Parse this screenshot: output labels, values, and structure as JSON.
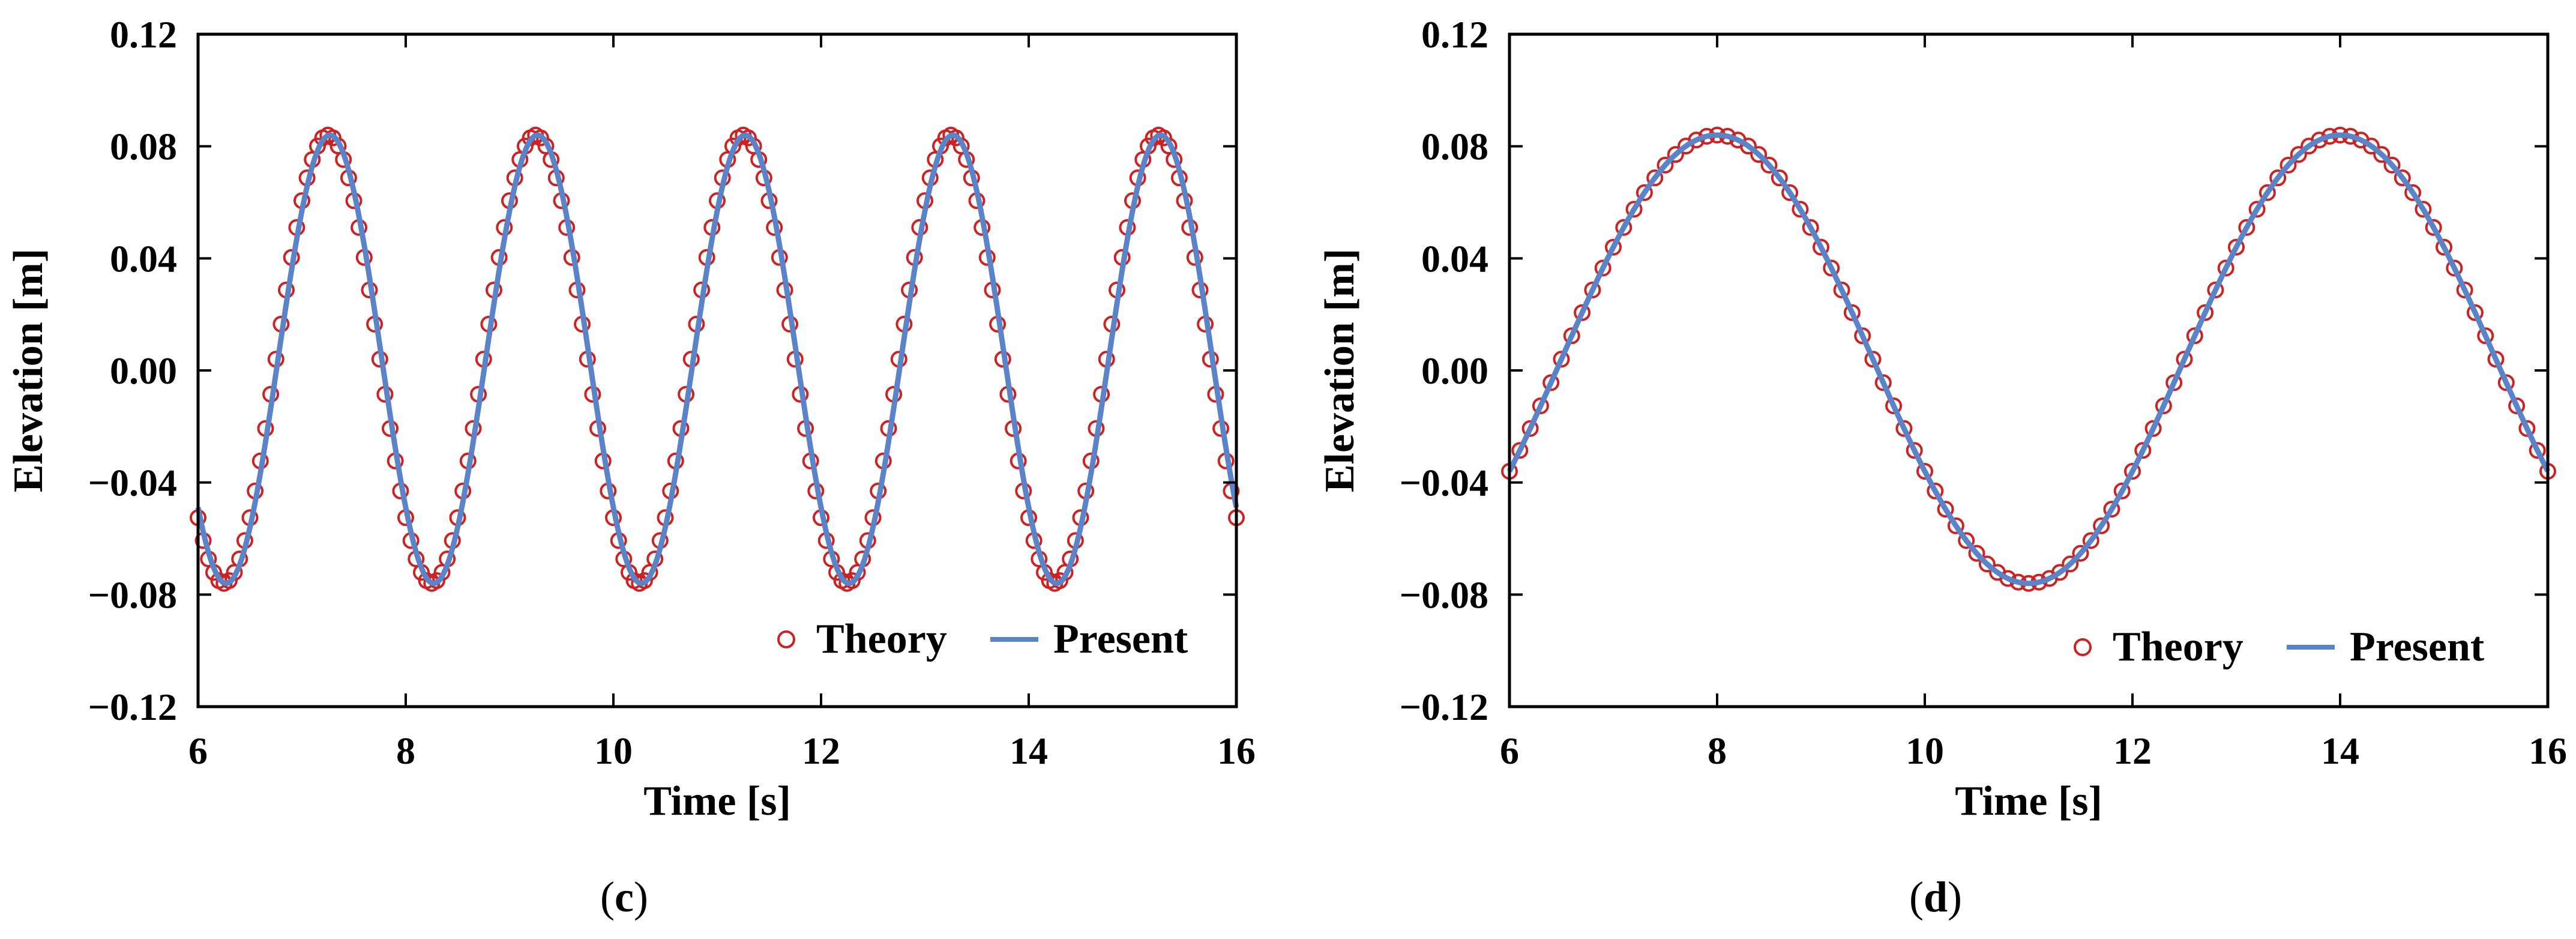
{
  "colors": {
    "theory": "#cc2222",
    "present": "#5b83c8",
    "axis": "#000000"
  },
  "chart_data": [
    {
      "type": "line",
      "panel": "c",
      "caption": "(c)",
      "caption_open": "(",
      "caption_letter": "c",
      "caption_close": ")",
      "xlabel": "Time [s]",
      "ylabel": "Elevation [m]",
      "xlim": [
        6,
        16
      ],
      "ylim": [
        -0.12,
        0.12
      ],
      "xticks": [
        "6",
        "8",
        "10",
        "12",
        "14",
        "16"
      ],
      "yticks": [
        "0.12",
        "0.08",
        "0.04",
        "0.00",
        "−0.04",
        "−0.08",
        "−0.12"
      ],
      "legend": [
        "Theory",
        "Present"
      ],
      "legend_position": "bottom-right",
      "series": [
        {
          "name": "Theory",
          "style": "markers",
          "marker": "open-circle",
          "function": "0.004 + 0.08*sin(2*pi*(t - 6.75)/2.0)",
          "period": 2.0,
          "amplitude": 0.08,
          "offset": 0.004,
          "t_start": 6.0,
          "t_end": 16.0,
          "sample_step": 0.05
        },
        {
          "name": "Present",
          "style": "line",
          "function": "0.004 + 0.08*sin(2*pi*(t - 6.77)/2.0)",
          "period": 2.0,
          "amplitude": 0.08,
          "offset": 0.004,
          "t_start": 6.0,
          "t_end": 16.0,
          "sample_step": 0.02
        }
      ]
    },
    {
      "type": "line",
      "panel": "d",
      "caption": "(d)",
      "caption_open": "(",
      "caption_letter": "d",
      "caption_close": ")",
      "xlabel": "Time [s]",
      "ylabel": "Elevation [m]",
      "xlim": [
        6,
        16
      ],
      "ylim": [
        -0.12,
        0.12
      ],
      "xticks": [
        "6",
        "8",
        "10",
        "12",
        "14",
        "16"
      ],
      "yticks": [
        "0.12",
        "0.08",
        "0.04",
        "0.00",
        "−0.04",
        "−0.08",
        "−0.12"
      ],
      "legend": [
        "Theory",
        "Present"
      ],
      "legend_position": "bottom-right",
      "series": [
        {
          "name": "Theory",
          "style": "markers",
          "marker": "open-circle",
          "function": "0.004 + 0.08*sin(2*pi*(t - 6.5)/6.0)",
          "period": 6.0,
          "amplitude": 0.08,
          "offset": 0.004,
          "t_start": 6.0,
          "t_end": 16.0,
          "sample_step": 0.1
        },
        {
          "name": "Present",
          "style": "line",
          "function": "0.004 + 0.08*sin(2*pi*(t - 6.5)/6.0)",
          "period": 6.0,
          "amplitude": 0.08,
          "offset": 0.004,
          "t_start": 6.0,
          "t_end": 16.0,
          "sample_step": 0.02
        }
      ]
    }
  ]
}
